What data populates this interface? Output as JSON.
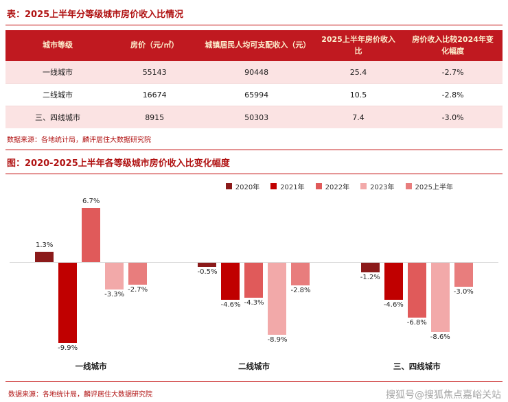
{
  "colors": {
    "accent": "#c00000",
    "title_color": "#b01212",
    "header_bg": "#c01920",
    "header_text": "#fdeecd",
    "row_pink": "#fbe3e3",
    "source_color": "#b01212",
    "zero_line": "#d9d9d9",
    "watermark_color": "#a6a6a6"
  },
  "table_section": {
    "title": "表：2025上半年分等级城市房价收入比情况",
    "header": [
      "城市等级",
      "房价（元/㎡）",
      "城镇居民人均可支配收入（元）",
      "2025上半年房价收入比",
      "房价收入比较2024年变化幅度"
    ],
    "rows": [
      [
        "一线城市",
        "55143",
        "90448",
        "25.4",
        "-2.7%"
      ],
      [
        "二线城市",
        "16674",
        "65994",
        "10.5",
        "-2.8%"
      ],
      [
        "三、四线城市",
        "8915",
        "50303",
        "7.4",
        "-3.0%"
      ]
    ],
    "source": "数据来源：各地统计局，麟评居住大数据研究院"
  },
  "chart_section": {
    "title": "图：2020-2025上半年各等级城市房价收入比变化幅度",
    "source": "数据来源：各地统计局，麟评居住大数据研究院"
  },
  "chart_data": {
    "type": "bar",
    "title": "2020-2025上半年各等级城市房价收入比变化幅度",
    "categories": [
      "一线城市",
      "二线城市",
      "三、四线城市"
    ],
    "series": [
      {
        "name": "2020年",
        "color": "#8b1a1a",
        "values": [
          1.3,
          -0.5,
          -1.2
        ]
      },
      {
        "name": "2021年",
        "color": "#c00000",
        "values": [
          -9.9,
          -4.6,
          -4.6
        ]
      },
      {
        "name": "2022年",
        "color": "#e05a5a",
        "values": [
          6.7,
          -4.3,
          -6.8
        ]
      },
      {
        "name": "2023年",
        "color": "#f2a9a9",
        "values": [
          -3.3,
          -8.9,
          -8.6
        ]
      },
      {
        "name": "2025上半年",
        "color": "#e87d7d",
        "values": [
          -2.7,
          -2.8,
          -3.0
        ]
      }
    ],
    "value_format": "percent",
    "ylim": [
      -10.5,
      7.5
    ],
    "legend_position": "top-right",
    "grid": false,
    "zero_line": true
  },
  "watermark": "搜狐号@搜狐焦点嘉峪关站"
}
